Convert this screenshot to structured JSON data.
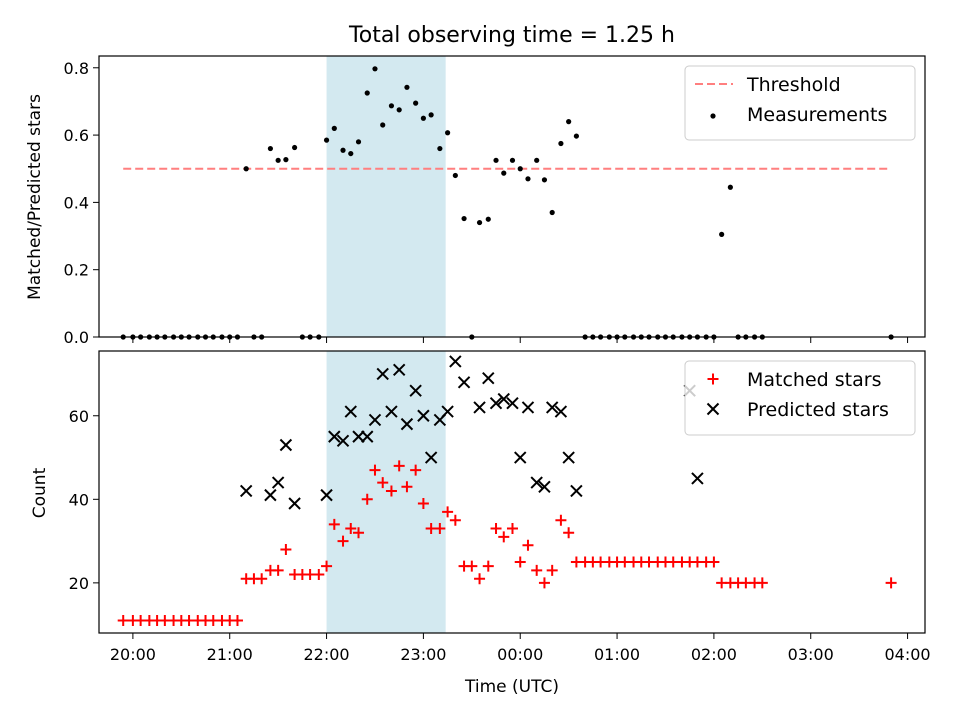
{
  "chart_data": [
    {
      "type": "scatter",
      "title": "Total observing time = 1.25 h",
      "ylabel": "Matched/Predicted stars",
      "xlabel": "",
      "xlim": [
        -0.35,
        8.18
      ],
      "ylim": [
        0.0,
        0.835
      ],
      "yticks": [
        0.0,
        0.2,
        0.4,
        0.6,
        0.8
      ],
      "ytick_labels": [
        "0.0",
        "0.2",
        "0.4",
        "0.6",
        "0.8"
      ],
      "shaded_span": [
        2.0,
        3.23
      ],
      "shaded_color": "#d3e9f0",
      "threshold": {
        "name": "Threshold",
        "y": 0.5,
        "x_range": [
          -0.1,
          7.83
        ],
        "color": "#ff7f7f",
        "style": "dashed"
      },
      "legend_position": "upper right",
      "series": [
        {
          "name": "Measurements",
          "marker": "dot",
          "color": "#000000",
          "x": [
            -0.1,
            0.0,
            0.08,
            0.17,
            0.25,
            0.33,
            0.42,
            0.5,
            0.58,
            0.67,
            0.75,
            0.83,
            0.92,
            1.0,
            1.08,
            1.17,
            1.25,
            1.33,
            1.42,
            1.5,
            1.58,
            1.67,
            1.75,
            1.83,
            1.92,
            2.0,
            2.08,
            2.17,
            2.25,
            2.33,
            2.42,
            2.5,
            2.58,
            2.67,
            2.75,
            2.83,
            2.92,
            3.0,
            3.08,
            3.17,
            3.25,
            3.33,
            3.42,
            3.5,
            3.58,
            3.67,
            3.75,
            3.83,
            3.92,
            4.0,
            4.08,
            4.17,
            4.25,
            4.33,
            4.42,
            4.5,
            4.58,
            4.67,
            4.75,
            4.83,
            4.92,
            5.0,
            5.08,
            5.17,
            5.25,
            5.33,
            5.42,
            5.5,
            5.58,
            5.67,
            5.75,
            5.83,
            5.92,
            6.0,
            6.08,
            6.17,
            6.25,
            6.33,
            6.42,
            6.5,
            7.83
          ],
          "y": [
            0.0,
            0.0,
            0.0,
            0.0,
            0.0,
            0.0,
            0.0,
            0.0,
            0.0,
            0.0,
            0.0,
            0.0,
            0.0,
            0.0,
            0.0,
            0.5,
            0.0,
            0.0,
            0.56,
            0.525,
            0.527,
            0.563,
            0.0,
            0.0,
            0.0,
            0.585,
            0.62,
            0.555,
            0.545,
            0.58,
            0.725,
            0.797,
            0.63,
            0.687,
            0.675,
            0.742,
            0.695,
            0.65,
            0.66,
            0.56,
            0.607,
            0.48,
            0.352,
            0.0,
            0.34,
            0.35,
            0.525,
            0.487,
            0.525,
            0.5,
            0.47,
            0.525,
            0.467,
            0.37,
            0.575,
            0.64,
            0.597,
            0.0,
            0.0,
            0.0,
            0.0,
            0.0,
            0.0,
            0.0,
            0.0,
            0.0,
            0.0,
            0.0,
            0.0,
            0.0,
            0.0,
            0.0,
            0.0,
            0.0,
            0.305,
            0.445,
            0.0,
            0.0,
            0.0,
            0.0,
            0.0
          ]
        }
      ]
    },
    {
      "type": "scatter",
      "title": "",
      "ylabel": "Count",
      "xlabel": "Time (UTC)",
      "xlim": [
        -0.35,
        8.18
      ],
      "ylim": [
        8,
        75.5
      ],
      "yticks": [
        20,
        40,
        60
      ],
      "ytick_labels": [
        "20",
        "40",
        "60"
      ],
      "xticks": [
        0,
        1,
        2,
        3,
        4,
        5,
        6,
        7,
        8
      ],
      "xtick_labels": [
        "20:00",
        "21:00",
        "22:00",
        "23:00",
        "00:00",
        "01:00",
        "02:00",
        "03:00",
        "04:00"
      ],
      "shaded_span": [
        2.0,
        3.23
      ],
      "shaded_color": "#d3e9f0",
      "legend_position": "upper right",
      "series": [
        {
          "name": "Matched stars",
          "marker": "plus",
          "color": "#ff0000",
          "x": [
            -0.1,
            0.0,
            0.08,
            0.17,
            0.25,
            0.33,
            0.42,
            0.5,
            0.58,
            0.67,
            0.75,
            0.83,
            0.92,
            1.0,
            1.08,
            1.17,
            1.25,
            1.33,
            1.42,
            1.5,
            1.58,
            1.67,
            1.75,
            1.83,
            1.92,
            2.0,
            2.08,
            2.17,
            2.25,
            2.33,
            2.42,
            2.5,
            2.58,
            2.67,
            2.75,
            2.83,
            2.92,
            3.0,
            3.08,
            3.17,
            3.25,
            3.33,
            3.42,
            3.5,
            3.58,
            3.67,
            3.75,
            3.83,
            3.92,
            4.0,
            4.08,
            4.17,
            4.25,
            4.33,
            4.42,
            4.5,
            4.58,
            4.67,
            4.75,
            4.83,
            4.92,
            5.0,
            5.08,
            5.17,
            5.25,
            5.33,
            5.42,
            5.5,
            5.58,
            5.67,
            5.75,
            5.83,
            5.92,
            6.0,
            6.08,
            6.17,
            6.25,
            6.33,
            6.42,
            6.5,
            7.83
          ],
          "y": [
            11,
            11,
            11,
            11,
            11,
            11,
            11,
            11,
            11,
            11,
            11,
            11,
            11,
            11,
            11,
            21,
            21,
            21,
            23,
            23,
            28,
            22,
            22,
            22,
            22,
            24,
            34,
            30,
            33,
            32,
            40,
            47,
            44,
            42,
            48,
            43,
            47,
            39,
            33,
            33,
            37,
            35,
            24,
            24,
            21,
            24,
            33,
            31,
            33,
            25,
            29,
            23,
            20,
            23,
            35,
            32,
            25,
            25,
            25,
            25,
            25,
            25,
            25,
            25,
            25,
            25,
            25,
            25,
            25,
            25,
            25,
            25,
            25,
            25,
            20,
            20,
            20,
            20,
            20,
            20,
            20
          ]
        },
        {
          "name": "Predicted stars",
          "marker": "x",
          "color": "#000000",
          "x": [
            1.17,
            1.42,
            1.5,
            1.58,
            1.67,
            2.0,
            2.08,
            2.17,
            2.25,
            2.33,
            2.42,
            2.5,
            2.58,
            2.67,
            2.75,
            2.83,
            2.92,
            3.0,
            3.08,
            3.17,
            3.25,
            3.33,
            3.42,
            3.58,
            3.67,
            3.75,
            3.83,
            3.92,
            4.0,
            4.08,
            4.17,
            4.25,
            4.33,
            4.42,
            4.5,
            4.58,
            5.75,
            5.83
          ],
          "y": [
            42,
            41,
            44,
            53,
            39,
            41,
            55,
            54,
            61,
            55,
            55,
            59,
            70,
            61,
            71,
            58,
            66,
            60,
            50,
            59,
            61,
            73,
            68,
            62,
            69,
            63,
            64,
            63,
            50,
            62,
            44,
            43,
            62,
            61,
            50,
            42,
            66,
            45
          ]
        }
      ]
    }
  ]
}
